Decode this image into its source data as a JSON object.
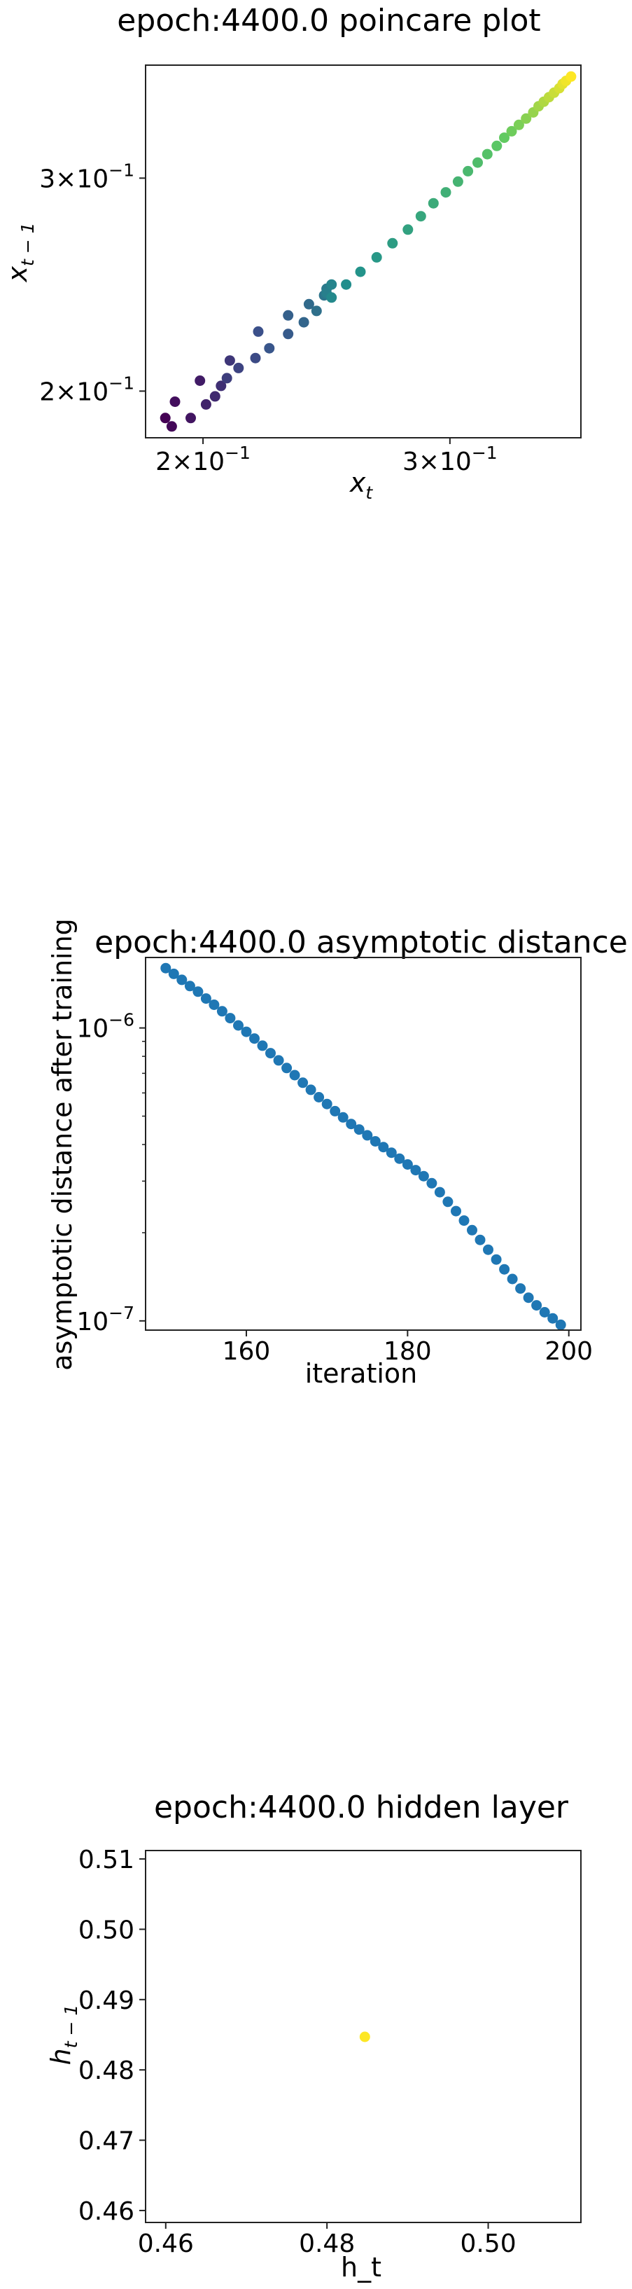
{
  "chart_data": [
    {
      "type": "scatter",
      "title": "epoch:4400.0 poincare plot",
      "xlabel": "x_t",
      "ylabel": "x_{t-1}",
      "xscale": "log",
      "yscale": "log",
      "xlim": [
        0.182,
        0.372
      ],
      "ylim": [
        0.183,
        0.372
      ],
      "xticks": [
        {
          "value": 0.2,
          "mantissa": "2",
          "base": "10",
          "exp": "−1"
        },
        {
          "value": 0.3,
          "mantissa": "3",
          "base": "10",
          "exp": "−1"
        }
      ],
      "yticks": [
        {
          "value": 0.2,
          "mantissa": "2",
          "base": "10",
          "exp": "−1"
        },
        {
          "value": 0.3,
          "mantissa": "3",
          "base": "10",
          "exp": "−1"
        }
      ],
      "colormap": [
        "#440154",
        "#3b528b",
        "#21918c",
        "#5ec962",
        "#fde725"
      ],
      "points": [
        [
          0.188,
          0.19
        ],
        [
          0.19,
          0.187
        ],
        [
          0.191,
          0.196
        ],
        [
          0.196,
          0.19
        ],
        [
          0.199,
          0.204
        ],
        [
          0.201,
          0.195
        ],
        [
          0.204,
          0.198
        ],
        [
          0.206,
          0.202
        ],
        [
          0.209,
          0.212
        ],
        [
          0.208,
          0.205
        ],
        [
          0.212,
          0.209
        ],
        [
          0.218,
          0.213
        ],
        [
          0.219,
          0.224
        ],
        [
          0.223,
          0.217
        ],
        [
          0.23,
          0.223
        ],
        [
          0.23,
          0.231
        ],
        [
          0.236,
          0.228
        ],
        [
          0.238,
          0.236
        ],
        [
          0.241,
          0.233
        ],
        [
          0.244,
          0.24
        ],
        [
          0.245,
          0.243
        ],
        [
          0.245,
          0.241
        ],
        [
          0.247,
          0.245
        ],
        [
          0.247,
          0.239
        ],
        [
          0.253,
          0.245
        ],
        [
          0.259,
          0.251
        ],
        [
          0.266,
          0.258
        ],
        [
          0.273,
          0.265
        ],
        [
          0.28,
          0.272
        ],
        [
          0.286,
          0.279
        ],
        [
          0.292,
          0.286
        ],
        [
          0.298,
          0.292
        ],
        [
          0.304,
          0.298
        ],
        [
          0.309,
          0.304
        ],
        [
          0.314,
          0.309
        ],
        [
          0.319,
          0.314
        ],
        [
          0.324,
          0.319
        ],
        [
          0.328,
          0.324
        ],
        [
          0.332,
          0.328
        ],
        [
          0.336,
          0.332
        ],
        [
          0.34,
          0.336
        ],
        [
          0.344,
          0.34
        ],
        [
          0.347,
          0.344
        ],
        [
          0.35,
          0.347
        ],
        [
          0.353,
          0.35
        ],
        [
          0.356,
          0.353
        ],
        [
          0.359,
          0.356
        ],
        [
          0.361,
          0.359
        ],
        [
          0.363,
          0.361
        ],
        [
          0.366,
          0.364
        ]
      ]
    },
    {
      "type": "scatter",
      "title": "epoch:4400.0 asymptotic distance",
      "xlabel": "iteration",
      "ylabel": "asymptotic distance after training",
      "xscale": "linear",
      "yscale": "log",
      "xlim": [
        147.5,
        201.5
      ],
      "ylim": [
        9.3e-08,
        1.74e-06
      ],
      "xticks": [
        160,
        180,
        200
      ],
      "yticks": [
        {
          "value": 1e-07,
          "base": "10",
          "exp": "−7"
        },
        {
          "value": 1e-06,
          "base": "10",
          "exp": "−6"
        }
      ],
      "color": "#1f77b4",
      "x": [
        150,
        151,
        152,
        153,
        154,
        155,
        156,
        157,
        158,
        159,
        160,
        161,
        162,
        163,
        164,
        165,
        166,
        167,
        168,
        169,
        170,
        171,
        172,
        173,
        174,
        175,
        176,
        177,
        178,
        179,
        180,
        181,
        182,
        183,
        184,
        185,
        186,
        187,
        188,
        189,
        190,
        191,
        192,
        193,
        194,
        195,
        196,
        197,
        198,
        199
      ],
      "y": [
        1.6e-06,
        1.53e-06,
        1.46e-06,
        1.39e-06,
        1.33e-06,
        1.26e-06,
        1.2e-06,
        1.14e-06,
        1.08e-06,
        1.02e-06,
        9.7e-07,
        9.2e-07,
        8.7e-07,
        8.2e-07,
        7.75e-07,
        7.3e-07,
        6.9e-07,
        6.5e-07,
        6.15e-07,
        5.8e-07,
        5.5e-07,
        5.2e-07,
        4.95e-07,
        4.7e-07,
        4.5e-07,
        4.3e-07,
        4.1e-07,
        3.92e-07,
        3.75e-07,
        3.58e-07,
        3.42e-07,
        3.27e-07,
        3.12e-07,
        2.95e-07,
        2.75e-07,
        2.55e-07,
        2.37e-07,
        2.2e-07,
        2.04e-07,
        1.89e-07,
        1.75e-07,
        1.62e-07,
        1.5e-07,
        1.39e-07,
        1.29e-07,
        1.2e-07,
        1.13e-07,
        1.07e-07,
        1.02e-07,
        9.7e-08
      ]
    },
    {
      "type": "scatter",
      "title": "epoch:4400.0 hidden layer",
      "xlabel": "h_t",
      "ylabel": "h_{t-1}",
      "xscale": "linear",
      "yscale": "linear",
      "xlim": [
        0.4575,
        0.5115
      ],
      "ylim": [
        0.4583,
        0.5112
      ],
      "xticks": [
        "0.46",
        "0.48",
        "0.50"
      ],
      "yticks": [
        "0.46",
        "0.47",
        "0.48",
        "0.49",
        "0.50",
        "0.51"
      ],
      "color": "#fde725",
      "points": [
        [
          0.4847,
          0.4847
        ]
      ]
    }
  ]
}
